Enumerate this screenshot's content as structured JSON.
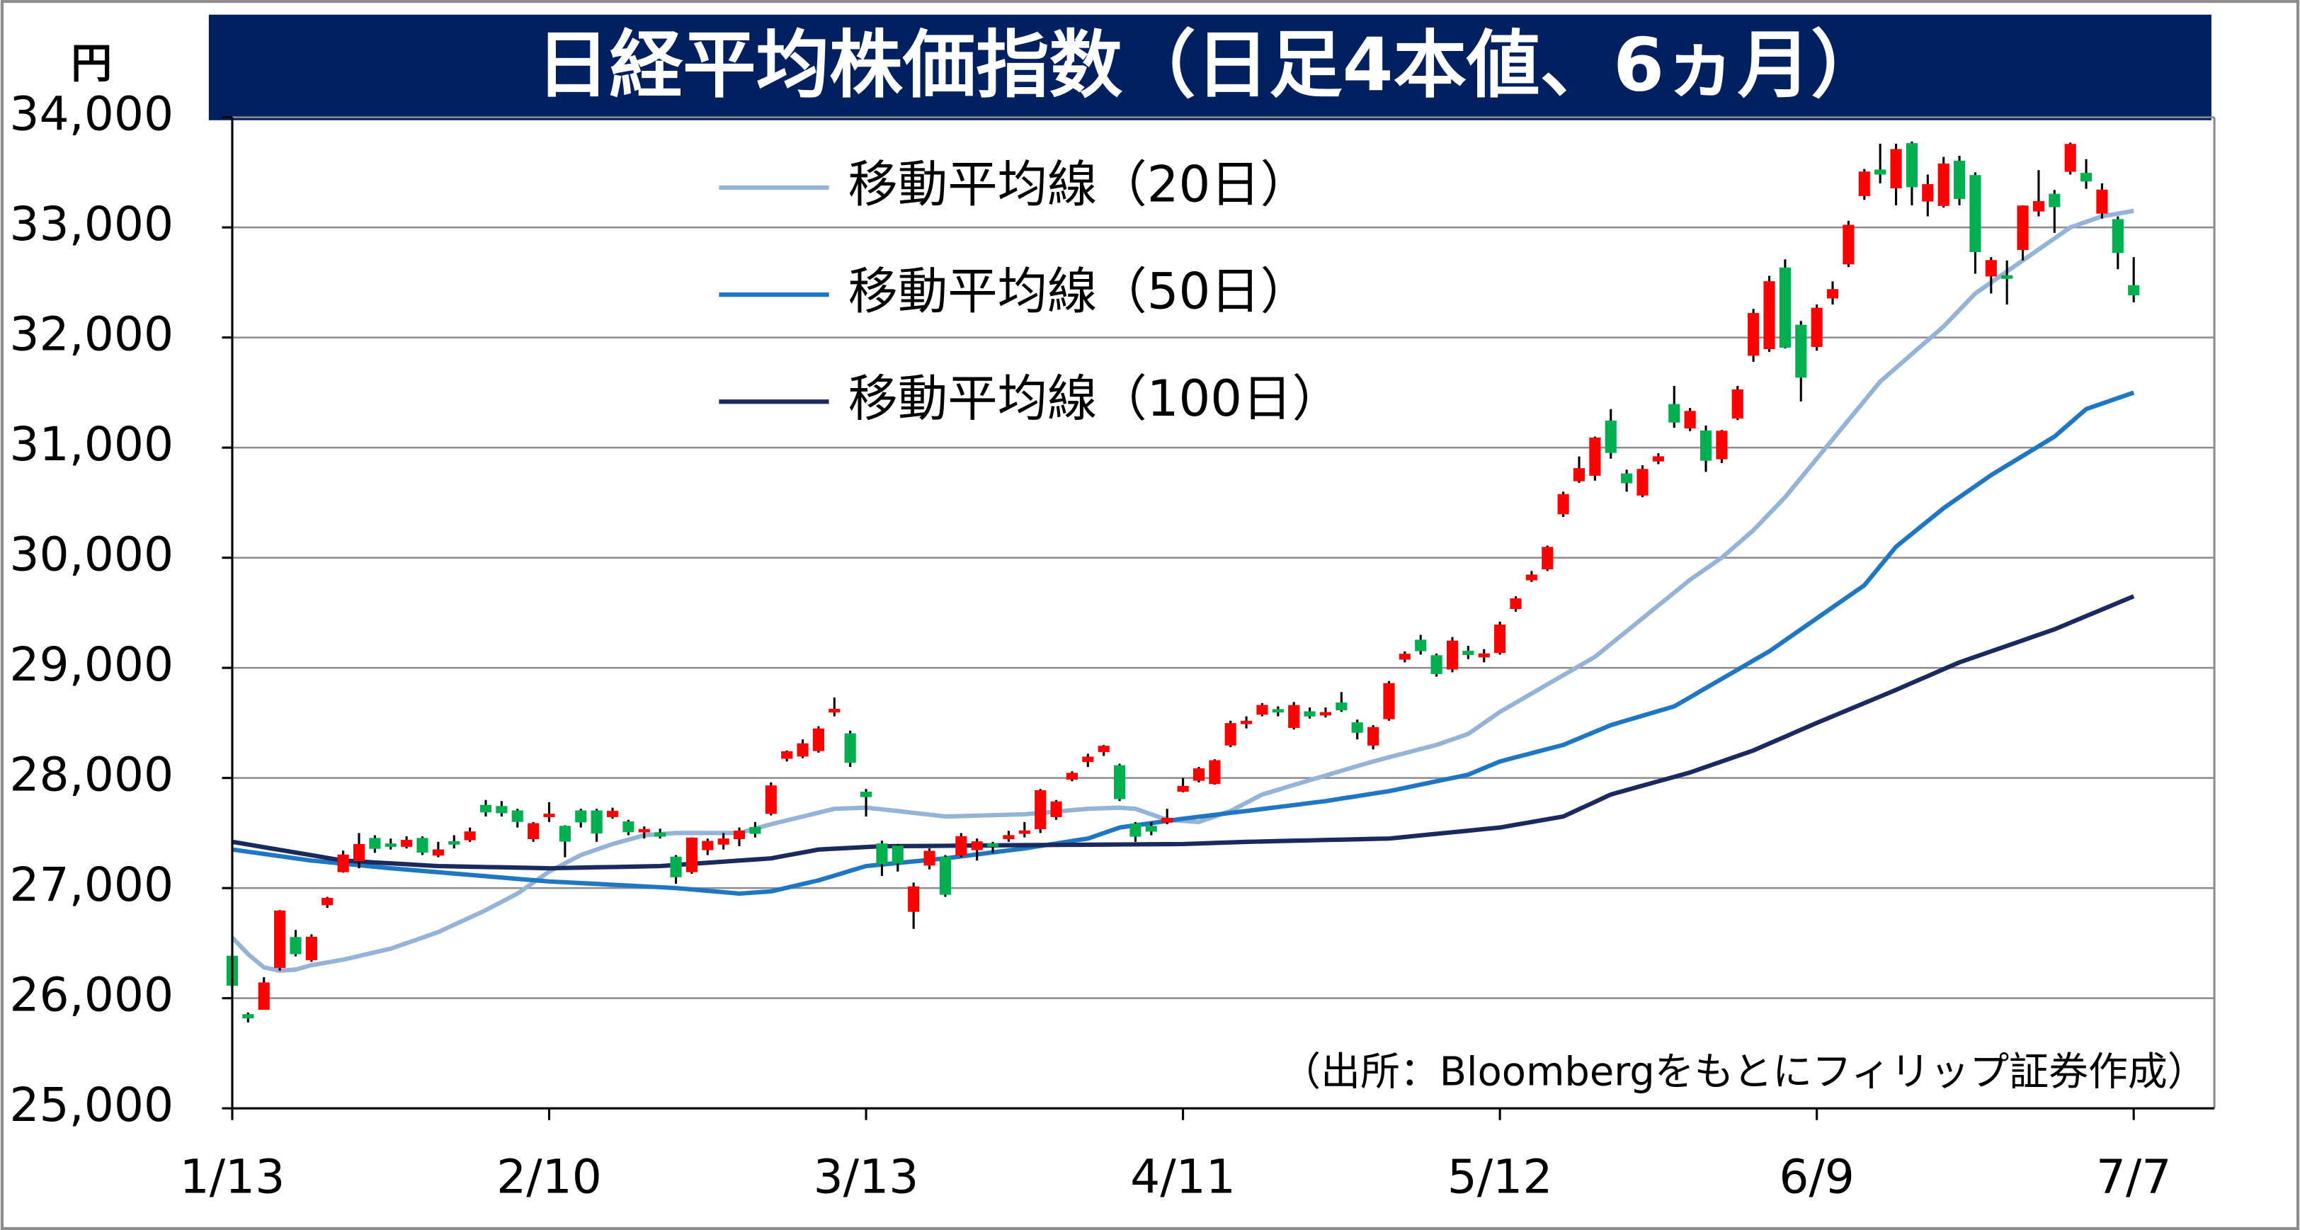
{
  "chart_data": {
    "type": "candlestick",
    "title": "日経平均株価指数（日足4本値、6ヵ月）",
    "y_label": "円",
    "source": "（出所：Bloombergをもとにフィリップ証券作成）",
    "up_color": "#ff0000",
    "down_color": "#00b050",
    "grid": true,
    "ylim": [
      25000,
      34000
    ],
    "yticks": [
      {
        "value": 25000,
        "label": "25,000"
      },
      {
        "value": 26000,
        "label": "26,000"
      },
      {
        "value": 27000,
        "label": "27,000"
      },
      {
        "value": 28000,
        "label": "28,000"
      },
      {
        "value": 29000,
        "label": "29,000"
      },
      {
        "value": 30000,
        "label": "30,000"
      },
      {
        "value": 31000,
        "label": "31,000"
      },
      {
        "value": 32000,
        "label": "32,000"
      },
      {
        "value": 33000,
        "label": "33,000"
      },
      {
        "value": 34000,
        "label": "34,000"
      }
    ],
    "categories": [
      "1/13",
      null,
      null,
      null,
      null,
      null,
      null,
      null,
      null,
      null,
      null,
      null,
      null,
      null,
      null,
      null,
      null,
      null,
      null,
      null,
      "2/10",
      null,
      null,
      null,
      null,
      null,
      null,
      null,
      null,
      null,
      null,
      null,
      null,
      null,
      null,
      null,
      null,
      null,
      null,
      null,
      "3/13",
      null,
      null,
      null,
      null,
      null,
      null,
      null,
      null,
      null,
      null,
      null,
      null,
      null,
      null,
      null,
      null,
      null,
      null,
      null,
      "4/11",
      null,
      null,
      null,
      null,
      null,
      null,
      null,
      null,
      null,
      null,
      null,
      null,
      null,
      null,
      null,
      null,
      null,
      null,
      null,
      "5/12",
      null,
      null,
      null,
      null,
      null,
      null,
      null,
      null,
      null,
      null,
      null,
      null,
      null,
      null,
      null,
      null,
      null,
      null,
      null,
      "6/9",
      null,
      null,
      null,
      null,
      null,
      null,
      null,
      null,
      null,
      null,
      null,
      null,
      null,
      null,
      null,
      null,
      null,
      null,
      null,
      "7/7"
    ],
    "ohlc": {
      "open": [
        26380,
        25850,
        25900,
        26280,
        26550,
        26350,
        26850,
        27150,
        27250,
        27450,
        27400,
        27380,
        27450,
        27300,
        27420,
        27440,
        27750,
        27740,
        27700,
        27450,
        27650,
        27560,
        27700,
        27700,
        27650,
        27600,
        27520,
        27500,
        27280,
        27150,
        27350,
        27400,
        27450,
        27550,
        27680,
        28180,
        28200,
        28250,
        28600,
        28400,
        27870,
        27400,
        27380,
        26790,
        27210,
        27280,
        27300,
        27350,
        27400,
        27450,
        27500,
        27540,
        27650,
        27990,
        28150,
        28240,
        28110,
        27580,
        27560,
        27600,
        27880,
        27980,
        27950,
        28300,
        28500,
        28580,
        28620,
        28460,
        28600,
        28580,
        28680,
        28500,
        28300,
        28540,
        29080,
        29250,
        29110,
        28990,
        29150,
        29100,
        29140,
        29540,
        29800,
        29900,
        30400,
        30700,
        30750,
        31240,
        30760,
        30570,
        30880,
        31390,
        31180,
        31150,
        30900,
        31270,
        31840,
        31900,
        32630,
        32110,
        31920,
        32360,
        32670,
        33290,
        33520,
        33360,
        33760,
        33240,
        33200,
        33600,
        33470,
        32560,
        32560,
        32800,
        33150,
        33300,
        33510,
        33490,
        33130,
        33070,
        32470
      ],
      "high": [
        26400,
        25870,
        26190,
        26800,
        26620,
        26580,
        26920,
        27340,
        27500,
        27480,
        27450,
        27470,
        27470,
        27420,
        27480,
        27550,
        27800,
        27790,
        27720,
        27600,
        27780,
        27570,
        27720,
        27720,
        27730,
        27620,
        27560,
        27540,
        27300,
        27460,
        27450,
        27500,
        27550,
        27600,
        27960,
        28250,
        28350,
        28470,
        28730,
        28430,
        27900,
        27430,
        27400,
        27050,
        27360,
        27300,
        27500,
        27450,
        27420,
        27520,
        27600,
        27900,
        27800,
        28060,
        28220,
        28300,
        28130,
        27600,
        27600,
        27720,
        28000,
        28100,
        28170,
        28520,
        28560,
        28680,
        28650,
        28690,
        28640,
        28640,
        28780,
        28530,
        28480,
        28880,
        29150,
        29300,
        29130,
        29280,
        29200,
        29170,
        29420,
        29650,
        29880,
        30110,
        30600,
        30920,
        31100,
        31350,
        30800,
        30840,
        30950,
        31560,
        31360,
        31200,
        31160,
        31560,
        32260,
        32560,
        32710,
        32150,
        32300,
        32510,
        33060,
        33530,
        33760,
        33760,
        33780,
        33480,
        33640,
        33650,
        33500,
        32730,
        32700,
        33200,
        33520,
        33340,
        33770,
        33620,
        33400,
        33100,
        32730
      ],
      "low": [
        26050,
        25780,
        25900,
        26250,
        26380,
        26330,
        26820,
        27140,
        27180,
        27320,
        27350,
        27360,
        27300,
        27280,
        27360,
        27420,
        27650,
        27650,
        27550,
        27420,
        27600,
        27280,
        27550,
        27420,
        27630,
        27480,
        27450,
        27450,
        27040,
        27130,
        27300,
        27350,
        27380,
        27460,
        27660,
        28150,
        28180,
        28230,
        28560,
        28100,
        27650,
        27110,
        27150,
        26630,
        27170,
        26920,
        27280,
        27250,
        27320,
        27420,
        27460,
        27500,
        27620,
        27970,
        28100,
        28200,
        27790,
        27420,
        27480,
        27580,
        27870,
        27960,
        27940,
        28280,
        28450,
        28560,
        28560,
        28440,
        28540,
        28550,
        28600,
        28350,
        28260,
        28520,
        29050,
        29120,
        28920,
        28960,
        29080,
        29050,
        29120,
        29510,
        29780,
        29880,
        30370,
        30680,
        30700,
        30900,
        30600,
        30550,
        30850,
        31180,
        31150,
        30780,
        30860,
        31250,
        31780,
        31870,
        31900,
        31420,
        31880,
        32300,
        32640,
        33250,
        33400,
        33200,
        33200,
        33100,
        33180,
        33200,
        32580,
        32400,
        32300,
        32700,
        33100,
        32950,
        33480,
        33350,
        33080,
        32620,
        32320
      ],
      "close": [
        26119,
        25822,
        26138,
        26791,
        26405,
        26553,
        26906,
        27299,
        27395,
        27362,
        27382,
        27433,
        27327,
        27346,
        27402,
        27509,
        27693,
        27685,
        27606,
        27584,
        27670,
        27427,
        27602,
        27501,
        27696,
        27513,
        27531,
        27473,
        27104,
        27453,
        27423,
        27445,
        27516,
        27498,
        27927,
        28237,
        28309,
        28444,
        28623,
        28143,
        27832,
        27222,
        27229,
        27010,
        27333,
        26945,
        27466,
        27419,
        27385,
        27476,
        27518,
        27883,
        27782,
        28041,
        28188,
        28287,
        27813,
        27472,
        27518,
        27633,
        27923,
        28082,
        28156,
        28493,
        28514,
        28658,
        28606,
        28657,
        28564,
        28593,
        28620,
        28416,
        28457,
        28856,
        29123,
        29157,
        28949,
        29242,
        29122,
        29126,
        29388,
        29626,
        29842,
        30093,
        30573,
        30808,
        31086,
        30957,
        30682,
        30801,
        30916,
        31233,
        31328,
        30887,
        31148,
        31524,
        32217,
        32506,
        31913,
        31641,
        32265,
        32434,
        33018,
        33502,
        33485,
        33706,
        33370,
        33388,
        33575,
        33264,
        32781,
        32698,
        32538,
        33193,
        33234,
        33189,
        33753,
        33422,
        33338,
        32773,
        32388
      ]
    },
    "lines": [
      {
        "name": "移動平均線（20日）",
        "color": "#95b3d7",
        "values": [
          26550,
          26400,
          26280,
          26250,
          26260,
          26300,
          26325,
          26350,
          26383,
          26417,
          26450,
          26500,
          26550,
          26600,
          26667,
          26733,
          26800,
          26875,
          26950,
          27050,
          27150,
          27225,
          27300,
          27350,
          27400,
          27440,
          27480,
          27490,
          27500,
          27500,
          27500,
          27500,
          27500,
          27540,
          27580,
          27615,
          27650,
          27685,
          27720,
          27725,
          27730,
          27715,
          27700,
          27683,
          27667,
          27650,
          27654,
          27658,
          27662,
          27666,
          27670,
          27682,
          27695,
          27708,
          27720,
          27725,
          27730,
          27720,
          27670,
          27620,
          27610,
          27600,
          27650,
          27700,
          27775,
          27850,
          27893,
          27937,
          27980,
          28022,
          28065,
          28108,
          28150,
          28188,
          28225,
          28263,
          28300,
          28350,
          28400,
          28500,
          28600,
          28683,
          28767,
          28850,
          28933,
          29017,
          29100,
          29217,
          29333,
          29450,
          29567,
          29683,
          29800,
          29900,
          30000,
          30125,
          30250,
          30400,
          30550,
          30725,
          30900,
          31075,
          31250,
          31425,
          31600,
          31725,
          31850,
          31975,
          32100,
          32250,
          32400,
          32500,
          32600,
          32700,
          32800,
          32900,
          33000,
          33050,
          33100,
          33125,
          33150
        ]
      },
      {
        "name": "移動平均線（50日）",
        "color": "#1f77c4",
        "values": [
          27350,
          27330,
          27310,
          27290,
          27270,
          27250,
          27236,
          27222,
          27208,
          27194,
          27180,
          27168,
          27156,
          27144,
          27132,
          27120,
          27108,
          27096,
          27084,
          27072,
          27060,
          27053,
          27045,
          27038,
          27030,
          27023,
          27015,
          27008,
          27000,
          26988,
          26975,
          26963,
          26950,
          26960,
          26970,
          27003,
          27037,
          27070,
          27113,
          27157,
          27200,
          27214,
          27228,
          27242,
          27256,
          27270,
          27288,
          27306,
          27324,
          27342,
          27360,
          27383,
          27405,
          27428,
          27450,
          27500,
          27550,
          27570,
          27590,
          27610,
          27630,
          27648,
          27665,
          27683,
          27700,
          27718,
          27736,
          27754,
          27772,
          27790,
          27813,
          27835,
          27858,
          27880,
          27910,
          27940,
          27970,
          28000,
          28030,
          28090,
          28150,
          28188,
          28225,
          28263,
          28300,
          28360,
          28420,
          28480,
          28523,
          28565,
          28608,
          28650,
          28733,
          28817,
          28900,
          28983,
          29067,
          29150,
          29250,
          29350,
          29450,
          29550,
          29650,
          29750,
          29925,
          30100,
          30217,
          30333,
          30450,
          30550,
          30650,
          30750,
          30838,
          30925,
          31013,
          31100,
          31225,
          31350,
          31400,
          31450,
          31500
        ]
      },
      {
        "name": "移動平均線（100日）",
        "color": "#1a2a5e",
        "values": [
          27420,
          27396,
          27371,
          27347,
          27323,
          27299,
          27274,
          27250,
          27242,
          27233,
          27225,
          27217,
          27208,
          27200,
          27197,
          27194,
          27191,
          27189,
          27186,
          27183,
          27180,
          27183,
          27186,
          27189,
          27191,
          27194,
          27197,
          27200,
          27210,
          27220,
          27230,
          27240,
          27250,
          27260,
          27270,
          27297,
          27323,
          27350,
          27358,
          27365,
          27373,
          27380,
          27381,
          27382,
          27383,
          27384,
          27386,
          27387,
          27388,
          27389,
          27390,
          27391,
          27392,
          27393,
          27394,
          27395,
          27396,
          27397,
          27398,
          27399,
          27400,
          27405,
          27410,
          27415,
          27420,
          27423,
          27427,
          27430,
          27433,
          27437,
          27440,
          27443,
          27447,
          27450,
          27464,
          27479,
          27493,
          27507,
          27521,
          27536,
          27550,
          27575,
          27600,
          27625,
          27650,
          27717,
          27783,
          27850,
          27890,
          27930,
          27970,
          28010,
          28050,
          28100,
          28150,
          28200,
          28250,
          28313,
          28375,
          28438,
          28500,
          28560,
          28620,
          28680,
          28740,
          28800,
          28863,
          28925,
          28988,
          29050,
          29100,
          29150,
          29200,
          29250,
          29300,
          29350,
          29410,
          29470,
          29530,
          29590,
          29650
        ]
      }
    ]
  }
}
